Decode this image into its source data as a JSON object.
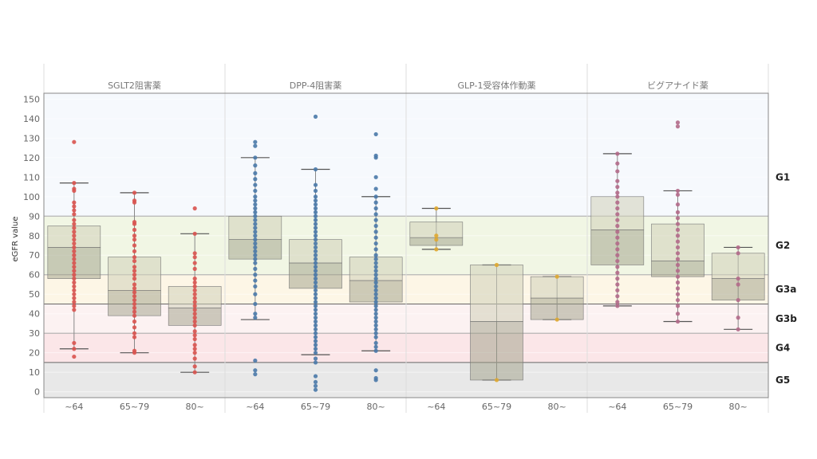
{
  "chart_data": {
    "type": "box",
    "ylabel": "eGFR value",
    "ylim": [
      -3,
      153
    ],
    "yticks": [
      0,
      10,
      20,
      30,
      40,
      50,
      60,
      70,
      80,
      90,
      100,
      110,
      120,
      130,
      140,
      150
    ],
    "categories": [
      "~64",
      "65~79",
      "80~"
    ],
    "bands": [
      {
        "name": "G1",
        "from": 90,
        "to": 153,
        "color": "#f6f9fd"
      },
      {
        "name": "G2",
        "from": 60,
        "to": 90,
        "color": "#f1f6e4"
      },
      {
        "name": "G3a",
        "from": 45,
        "to": 60,
        "color": "#fdf6e6"
      },
      {
        "name": "G3b",
        "from": 30,
        "to": 45,
        "color": "#fcf2f2"
      },
      {
        "name": "G4",
        "from": 15,
        "to": 30,
        "color": "#fbe6e8"
      },
      {
        "name": "G5",
        "from": -3,
        "to": 15,
        "color": "#e8e8e8"
      }
    ],
    "panels": [
      {
        "name": "SGLT2阻害薬",
        "color": "#d9534f",
        "groups": [
          {
            "category": "~64",
            "min": 22,
            "q1": 58,
            "median": 74,
            "q3": 85,
            "max": 107,
            "points": [
              128,
              107,
              104,
              103,
              97,
              95,
              93,
              91,
              88,
              86,
              84,
              82,
              80,
              78,
              76,
              74,
              72,
              70,
              68,
              66,
              64,
              62,
              60,
              58,
              56,
              54,
              52,
              50,
              48,
              46,
              44,
              42,
              25,
              22,
              18
            ]
          },
          {
            "category": "65~79",
            "min": 20,
            "q1": 39,
            "median": 52,
            "q3": 69,
            "max": 102,
            "points": [
              102,
              98,
              97,
              87,
              86,
              83,
              80,
              78,
              75,
              72,
              69,
              67,
              64,
              62,
              60,
              58,
              55,
              53,
              51,
              49,
              47,
              45,
              43,
              41,
              39,
              36,
              33,
              30,
              28,
              21,
              20
            ]
          },
          {
            "category": "80~",
            "min": 10,
            "q1": 34,
            "median": 43,
            "q3": 54,
            "max": 81,
            "points": [
              94,
              81,
              71,
              69,
              66,
              63,
              58,
              56,
              54,
              52,
              50,
              48,
              46,
              44,
              42,
              40,
              38,
              36,
              34,
              31,
              29,
              27,
              24,
              22,
              20,
              17,
              13,
              10
            ]
          }
        ]
      },
      {
        "name": "DPP-4阻害薬",
        "color": "#4a79a8",
        "groups": [
          {
            "category": "~64",
            "min": 37,
            "q1": 68,
            "median": 78,
            "q3": 90,
            "max": 120,
            "points": [
              128,
              126,
              120,
              116,
              112,
              109,
              106,
              103,
              100,
              98,
              96,
              94,
              92,
              90,
              88,
              86,
              84,
              82,
              80,
              78,
              76,
              74,
              72,
              70,
              68,
              66,
              63,
              60,
              57,
              54,
              50,
              45,
              40,
              38,
              16,
              11,
              9
            ]
          },
          {
            "category": "65~79",
            "min": 19,
            "q1": 53,
            "median": 66,
            "q3": 78,
            "max": 114,
            "points": [
              141,
              114,
              106,
              103,
              100,
              98,
              96,
              94,
              92,
              90,
              88,
              86,
              84,
              82,
              80,
              78,
              76,
              74,
              72,
              70,
              68,
              66,
              64,
              62,
              60,
              58,
              56,
              54,
              52,
              50,
              48,
              46,
              44,
              42,
              40,
              38,
              36,
              34,
              32,
              30,
              28,
              26,
              24,
              22,
              20,
              17,
              15,
              8,
              5,
              3,
              1
            ]
          },
          {
            "category": "80~",
            "min": 21,
            "q1": 46,
            "median": 57,
            "q3": 69,
            "max": 100,
            "points": [
              132,
              121,
              120,
              110,
              104,
              100,
              97,
              94,
              91,
              88,
              85,
              82,
              79,
              76,
              73,
              70,
              68,
              66,
              64,
              62,
              60,
              58,
              56,
              54,
              52,
              50,
              48,
              46,
              44,
              42,
              40,
              38,
              36,
              34,
              32,
              30,
              28,
              25,
              23,
              21,
              11,
              7,
              6
            ]
          }
        ]
      },
      {
        "name": "GLP-1受容体作動薬",
        "color": "#e0a830",
        "groups": [
          {
            "category": "~64",
            "min": 73,
            "q1": 75,
            "median": 79,
            "q3": 87,
            "max": 94,
            "points": [
              94,
              80,
              78,
              73
            ]
          },
          {
            "category": "65~79",
            "min": 6,
            "q1": 6,
            "median": 36,
            "q3": 65,
            "max": 65,
            "points": [
              65,
              6
            ]
          },
          {
            "category": "80~",
            "min": 37,
            "q1": 37,
            "median": 48,
            "q3": 59,
            "max": 59,
            "points": [
              59,
              37
            ]
          }
        ]
      },
      {
        "name": "ビグアナイド薬",
        "color": "#b36a8a",
        "groups": [
          {
            "category": "~64",
            "min": 44,
            "q1": 65,
            "median": 83,
            "q3": 100,
            "max": 122,
            "points": [
              122,
              117,
              113,
              108,
              105,
              102,
              100,
              97,
              94,
              91,
              88,
              85,
              82,
              79,
              76,
              73,
              70,
              67,
              64,
              61,
              58,
              55,
              52,
              49,
              46,
              44
            ]
          },
          {
            "category": "65~79",
            "min": 36,
            "q1": 59,
            "median": 67,
            "q3": 86,
            "max": 103,
            "points": [
              138,
              136,
              103,
              101,
              96,
              92,
              89,
              86,
              83,
              80,
              77,
              74,
              71,
              68,
              65,
              62,
              59,
              56,
              53,
              50,
              47,
              44,
              40,
              36
            ]
          },
          {
            "category": "80~",
            "min": 32,
            "q1": 47,
            "median": 58,
            "q3": 71,
            "max": 74,
            "points": [
              74,
              71,
              58,
              55,
              47,
              38,
              32
            ]
          }
        ]
      }
    ]
  }
}
